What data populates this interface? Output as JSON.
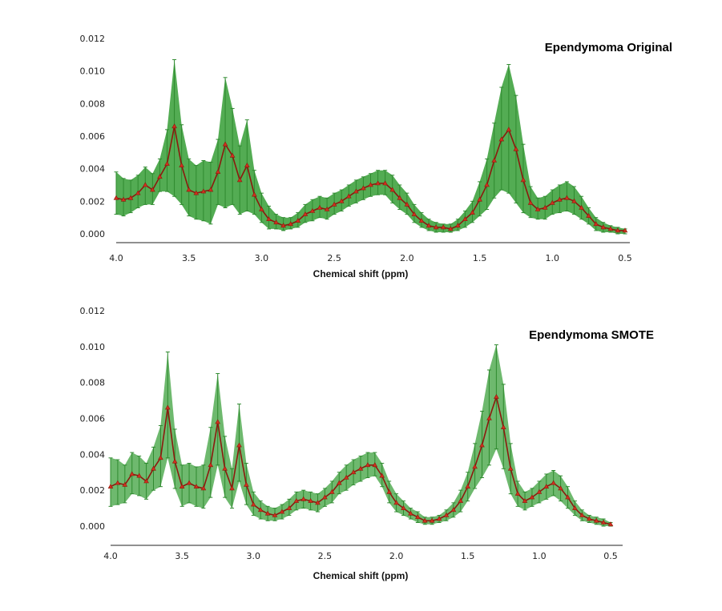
{
  "chart_data": [
    {
      "type": "line",
      "title": "Ependymoma Original",
      "xlabel": "Chemical shift (ppm)",
      "ylabel": "",
      "xlim": [
        4.0,
        0.5
      ],
      "ylim": [
        0.0,
        0.012
      ],
      "x_ticks": [
        "4.0",
        "3.5",
        "3.0",
        "2.5",
        "2.0",
        "1.5",
        "1.0",
        "0.5"
      ],
      "y_ticks": [
        "0.000",
        "0.002",
        "0.004",
        "0.006",
        "0.008",
        "0.010",
        "0.012"
      ],
      "colors": {
        "band": "#4aa84a",
        "band_edge": "#2f8a2f",
        "line": "#8b1a0e",
        "marker": "#d2301e"
      },
      "series": [
        {
          "name": "mean",
          "x": [
            4.0,
            3.95,
            3.9,
            3.85,
            3.8,
            3.75,
            3.7,
            3.65,
            3.6,
            3.55,
            3.5,
            3.45,
            3.4,
            3.35,
            3.3,
            3.25,
            3.2,
            3.15,
            3.1,
            3.05,
            3.0,
            2.95,
            2.9,
            2.85,
            2.8,
            2.75,
            2.7,
            2.65,
            2.6,
            2.55,
            2.5,
            2.45,
            2.4,
            2.35,
            2.3,
            2.25,
            2.2,
            2.15,
            2.1,
            2.05,
            2.0,
            1.95,
            1.9,
            1.85,
            1.8,
            1.75,
            1.7,
            1.65,
            1.6,
            1.55,
            1.5,
            1.45,
            1.4,
            1.35,
            1.3,
            1.25,
            1.2,
            1.15,
            1.1,
            1.05,
            1.0,
            0.95,
            0.9,
            0.85,
            0.8,
            0.75,
            0.7,
            0.65,
            0.6,
            0.55,
            0.5
          ],
          "y": [
            0.0022,
            0.0021,
            0.0022,
            0.0025,
            0.003,
            0.0027,
            0.0035,
            0.0043,
            0.0066,
            0.0042,
            0.0027,
            0.0025,
            0.0026,
            0.0027,
            0.0038,
            0.0055,
            0.0048,
            0.0033,
            0.0042,
            0.0024,
            0.0015,
            0.0009,
            0.0007,
            0.0005,
            0.0006,
            0.0008,
            0.0012,
            0.0014,
            0.0016,
            0.0015,
            0.0018,
            0.002,
            0.0023,
            0.0026,
            0.0028,
            0.003,
            0.0031,
            0.0031,
            0.0027,
            0.0022,
            0.0018,
            0.0012,
            0.0008,
            0.0005,
            0.0004,
            0.0004,
            0.0003,
            0.0005,
            0.0009,
            0.0013,
            0.0021,
            0.003,
            0.0045,
            0.0058,
            0.0064,
            0.0052,
            0.0033,
            0.0019,
            0.0015,
            0.0016,
            0.0019,
            0.0021,
            0.0022,
            0.002,
            0.0016,
            0.0011,
            0.0006,
            0.0004,
            0.0003,
            0.0002,
            0.0002
          ]
        },
        {
          "name": "upper",
          "x": [
            4.0,
            3.95,
            3.9,
            3.85,
            3.8,
            3.75,
            3.7,
            3.65,
            3.6,
            3.55,
            3.5,
            3.45,
            3.4,
            3.35,
            3.3,
            3.25,
            3.2,
            3.15,
            3.1,
            3.05,
            3.0,
            2.95,
            2.9,
            2.85,
            2.8,
            2.75,
            2.7,
            2.65,
            2.6,
            2.55,
            2.5,
            2.45,
            2.4,
            2.35,
            2.3,
            2.25,
            2.2,
            2.15,
            2.1,
            2.05,
            2.0,
            1.95,
            1.9,
            1.85,
            1.8,
            1.75,
            1.7,
            1.65,
            1.6,
            1.55,
            1.5,
            1.45,
            1.4,
            1.35,
            1.3,
            1.25,
            1.2,
            1.15,
            1.1,
            1.05,
            1.0,
            0.95,
            0.9,
            0.85,
            0.8,
            0.75,
            0.7,
            0.65,
            0.6,
            0.55,
            0.5
          ],
          "y": [
            0.0038,
            0.0034,
            0.0033,
            0.0036,
            0.0041,
            0.0037,
            0.0046,
            0.0064,
            0.0107,
            0.0067,
            0.0046,
            0.0042,
            0.0045,
            0.0044,
            0.0058,
            0.0096,
            0.0077,
            0.0054,
            0.007,
            0.0039,
            0.0025,
            0.0017,
            0.0012,
            0.001,
            0.001,
            0.0013,
            0.0018,
            0.0021,
            0.0023,
            0.0022,
            0.0025,
            0.0027,
            0.003,
            0.0033,
            0.0035,
            0.0037,
            0.0039,
            0.0039,
            0.0036,
            0.003,
            0.0025,
            0.0018,
            0.0013,
            0.0009,
            0.0007,
            0.0006,
            0.0006,
            0.0009,
            0.0014,
            0.002,
            0.0032,
            0.0046,
            0.0068,
            0.009,
            0.0104,
            0.0085,
            0.0055,
            0.0029,
            0.0022,
            0.0023,
            0.0027,
            0.003,
            0.0032,
            0.0029,
            0.0023,
            0.0016,
            0.001,
            0.0007,
            0.0005,
            0.0004,
            0.0003
          ]
        },
        {
          "name": "lower",
          "x": [
            4.0,
            3.95,
            3.9,
            3.85,
            3.8,
            3.75,
            3.7,
            3.65,
            3.6,
            3.55,
            3.5,
            3.45,
            3.4,
            3.35,
            3.3,
            3.25,
            3.2,
            3.15,
            3.1,
            3.05,
            3.0,
            2.95,
            2.9,
            2.85,
            2.8,
            2.75,
            2.7,
            2.65,
            2.6,
            2.55,
            2.5,
            2.45,
            2.4,
            2.35,
            2.3,
            2.25,
            2.2,
            2.15,
            2.1,
            2.05,
            2.0,
            1.95,
            1.9,
            1.85,
            1.8,
            1.75,
            1.7,
            1.65,
            1.6,
            1.55,
            1.5,
            1.45,
            1.4,
            1.35,
            1.3,
            1.25,
            1.2,
            1.15,
            1.1,
            1.05,
            1.0,
            0.95,
            0.9,
            0.85,
            0.8,
            0.75,
            0.7,
            0.65,
            0.6,
            0.55,
            0.5
          ],
          "y": [
            0.0012,
            0.0011,
            0.0013,
            0.0016,
            0.0018,
            0.0018,
            0.0026,
            0.0026,
            0.0023,
            0.0018,
            0.0011,
            0.0009,
            0.0008,
            0.0006,
            0.0018,
            0.0016,
            0.0018,
            0.0012,
            0.0014,
            0.0012,
            0.0007,
            0.0003,
            0.0003,
            0.0002,
            0.0003,
            0.0004,
            0.0007,
            0.0008,
            0.001,
            0.0009,
            0.0012,
            0.0014,
            0.0017,
            0.0019,
            0.0021,
            0.0023,
            0.0024,
            0.0024,
            0.0019,
            0.0015,
            0.0012,
            0.0007,
            0.0004,
            0.0002,
            0.0001,
            0.0001,
            0.0001,
            0.0002,
            0.0004,
            0.0007,
            0.0011,
            0.0015,
            0.0022,
            0.0027,
            0.0025,
            0.0019,
            0.0013,
            0.001,
            0.0009,
            0.0009,
            0.0012,
            0.0013,
            0.0014,
            0.0012,
            0.0009,
            0.0006,
            0.0002,
            0.0001,
            0.0001,
            0.0,
            0.0
          ]
        }
      ]
    },
    {
      "type": "line",
      "title": "Ependymoma SMOTE",
      "xlabel": "Chemical shift (ppm)",
      "ylabel": "",
      "xlim": [
        4.0,
        0.5
      ],
      "ylim": [
        0.0,
        0.012
      ],
      "x_ticks": [
        "4.0",
        "3.5",
        "3.0",
        "2.5",
        "2.0",
        "1.5",
        "1.0",
        "0.5"
      ],
      "y_ticks": [
        "0.000",
        "0.002",
        "0.004",
        "0.006",
        "0.008",
        "0.010",
        "0.012"
      ],
      "colors": {
        "band": "#4aa84a",
        "band_edge": "#2f8a2f",
        "line": "#8b1a0e",
        "marker": "#d2301e"
      },
      "series": [
        {
          "name": "mean",
          "x": [
            4.0,
            3.95,
            3.9,
            3.85,
            3.8,
            3.75,
            3.7,
            3.65,
            3.6,
            3.55,
            3.5,
            3.45,
            3.4,
            3.35,
            3.3,
            3.25,
            3.2,
            3.15,
            3.1,
            3.05,
            3.0,
            2.95,
            2.9,
            2.85,
            2.8,
            2.75,
            2.7,
            2.65,
            2.6,
            2.55,
            2.5,
            2.45,
            2.4,
            2.35,
            2.3,
            2.25,
            2.2,
            2.15,
            2.1,
            2.05,
            2.0,
            1.95,
            1.9,
            1.85,
            1.8,
            1.75,
            1.7,
            1.65,
            1.6,
            1.55,
            1.5,
            1.45,
            1.4,
            1.35,
            1.3,
            1.25,
            1.2,
            1.15,
            1.1,
            1.05,
            1.0,
            0.95,
            0.9,
            0.85,
            0.8,
            0.75,
            0.7,
            0.65,
            0.6,
            0.55,
            0.5
          ],
          "y": [
            0.0022,
            0.0024,
            0.0023,
            0.0029,
            0.0028,
            0.0025,
            0.0032,
            0.0038,
            0.0066,
            0.0036,
            0.0022,
            0.0024,
            0.0022,
            0.0021,
            0.0034,
            0.0058,
            0.0032,
            0.0021,
            0.0045,
            0.0023,
            0.0012,
            0.0009,
            0.0007,
            0.0006,
            0.0008,
            0.001,
            0.0014,
            0.0015,
            0.0014,
            0.0013,
            0.0016,
            0.0019,
            0.0024,
            0.0027,
            0.003,
            0.0032,
            0.0034,
            0.0034,
            0.0028,
            0.0019,
            0.0013,
            0.001,
            0.0007,
            0.0005,
            0.0003,
            0.0003,
            0.0004,
            0.0006,
            0.0009,
            0.0014,
            0.0022,
            0.0033,
            0.0045,
            0.006,
            0.0072,
            0.0055,
            0.0032,
            0.0018,
            0.0014,
            0.0016,
            0.0019,
            0.0022,
            0.0024,
            0.0021,
            0.0016,
            0.001,
            0.0006,
            0.0004,
            0.0003,
            0.0002,
            0.0001
          ]
        },
        {
          "name": "upper",
          "x": [
            4.0,
            3.95,
            3.9,
            3.85,
            3.8,
            3.75,
            3.7,
            3.65,
            3.6,
            3.55,
            3.5,
            3.45,
            3.4,
            3.35,
            3.3,
            3.25,
            3.2,
            3.15,
            3.1,
            3.05,
            3.0,
            2.95,
            2.9,
            2.85,
            2.8,
            2.75,
            2.7,
            2.65,
            2.6,
            2.55,
            2.5,
            2.45,
            2.4,
            2.35,
            2.3,
            2.25,
            2.2,
            2.15,
            2.1,
            2.05,
            2.0,
            1.95,
            1.9,
            1.85,
            1.8,
            1.75,
            1.7,
            1.65,
            1.6,
            1.55,
            1.5,
            1.45,
            1.4,
            1.35,
            1.3,
            1.25,
            1.2,
            1.15,
            1.1,
            1.05,
            1.0,
            0.95,
            0.9,
            0.85,
            0.8,
            0.75,
            0.7,
            0.65,
            0.6,
            0.55,
            0.5
          ],
          "y": [
            0.0038,
            0.0037,
            0.0034,
            0.0041,
            0.0039,
            0.0035,
            0.0044,
            0.0056,
            0.0097,
            0.0054,
            0.0034,
            0.0035,
            0.0033,
            0.0034,
            0.0055,
            0.0085,
            0.005,
            0.0032,
            0.0068,
            0.0035,
            0.0019,
            0.0014,
            0.0011,
            0.001,
            0.0012,
            0.0015,
            0.0019,
            0.002,
            0.0019,
            0.0018,
            0.0021,
            0.0025,
            0.003,
            0.0034,
            0.0037,
            0.0039,
            0.0041,
            0.0041,
            0.0035,
            0.0025,
            0.0018,
            0.0014,
            0.001,
            0.0008,
            0.0005,
            0.0005,
            0.0006,
            0.0009,
            0.0013,
            0.002,
            0.003,
            0.0046,
            0.0064,
            0.0087,
            0.0101,
            0.0079,
            0.0046,
            0.0025,
            0.0019,
            0.0021,
            0.0025,
            0.0029,
            0.0031,
            0.0028,
            0.0022,
            0.0014,
            0.0009,
            0.0006,
            0.0005,
            0.0004,
            0.0002
          ]
        },
        {
          "name": "lower",
          "x": [
            4.0,
            3.95,
            3.9,
            3.85,
            3.8,
            3.75,
            3.7,
            3.65,
            3.6,
            3.55,
            3.5,
            3.45,
            3.4,
            3.35,
            3.3,
            3.25,
            3.2,
            3.15,
            3.1,
            3.05,
            3.0,
            2.95,
            2.9,
            2.85,
            2.8,
            2.75,
            2.7,
            2.65,
            2.6,
            2.55,
            2.5,
            2.45,
            2.4,
            2.35,
            2.3,
            2.25,
            2.2,
            2.15,
            2.1,
            2.05,
            2.0,
            1.95,
            1.9,
            1.85,
            1.8,
            1.75,
            1.7,
            1.65,
            1.6,
            1.55,
            1.5,
            1.45,
            1.4,
            1.35,
            1.3,
            1.25,
            1.2,
            1.15,
            1.1,
            1.05,
            1.0,
            0.95,
            0.9,
            0.85,
            0.8,
            0.75,
            0.7,
            0.65,
            0.6,
            0.55,
            0.5
          ],
          "y": [
            0.0011,
            0.0012,
            0.0013,
            0.0018,
            0.0017,
            0.0015,
            0.002,
            0.0022,
            0.0038,
            0.0021,
            0.0011,
            0.0013,
            0.0011,
            0.001,
            0.0016,
            0.0034,
            0.0016,
            0.001,
            0.0025,
            0.0012,
            0.0006,
            0.0004,
            0.0003,
            0.0003,
            0.0004,
            0.0006,
            0.0009,
            0.001,
            0.0009,
            0.0008,
            0.0011,
            0.0013,
            0.0018,
            0.002,
            0.0023,
            0.0025,
            0.0027,
            0.0028,
            0.0022,
            0.0013,
            0.0008,
            0.0006,
            0.0004,
            0.0002,
            0.0001,
            0.0001,
            0.0002,
            0.0003,
            0.0005,
            0.0008,
            0.0014,
            0.0021,
            0.0027,
            0.0034,
            0.0043,
            0.0032,
            0.0018,
            0.0011,
            0.0009,
            0.0011,
            0.0013,
            0.0015,
            0.0017,
            0.0014,
            0.001,
            0.0006,
            0.0003,
            0.0002,
            0.0001,
            0.0,
            0.0
          ]
        }
      ]
    }
  ]
}
